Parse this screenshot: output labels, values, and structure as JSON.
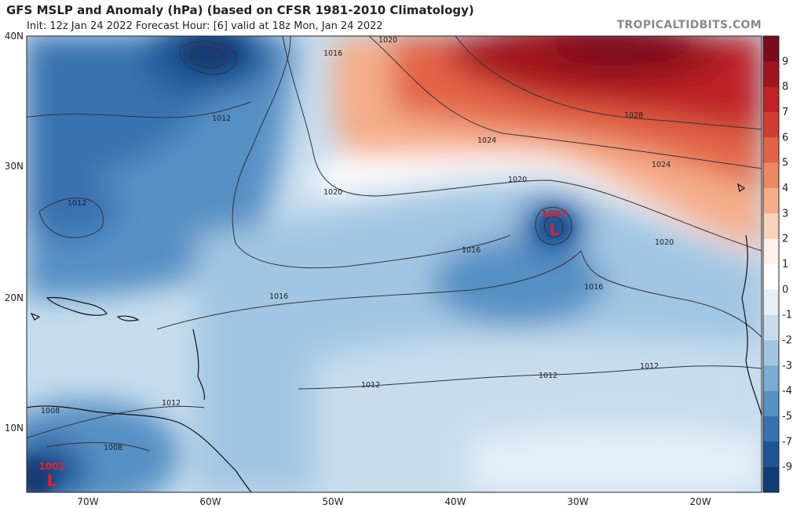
{
  "header": {
    "title": "GFS MSLP and Anomaly (hPa) (based on CFSR 1981-2010 Climatology)",
    "subtitle": "Init: 12z Jan 24 2022   Forecast Hour: [6]   valid at 18z Mon, Jan 24 2022",
    "brand": "TROPICALTIDBITS.COM"
  },
  "axes": {
    "lat_labels": [
      "40N",
      "30N",
      "20N",
      "10N"
    ],
    "lon_labels": [
      "70W",
      "60W",
      "50W",
      "40W",
      "30W",
      "20W"
    ]
  },
  "colorbar": {
    "labels": [
      "9",
      "8",
      "7",
      "6",
      "5",
      "4",
      "3",
      "2",
      "1",
      "0",
      "-1",
      "-2",
      "-3",
      "-4",
      "-5",
      "-7",
      "-9"
    ],
    "colors": [
      "#7a0b1a",
      "#a0141e",
      "#bf2327",
      "#d23c33",
      "#e26447",
      "#ee8863",
      "#f5ad8a",
      "#fad3bd",
      "#fdf0e8",
      "#ffffff",
      "#e4eff7",
      "#c7ddee",
      "#a2c6e2",
      "#7aacd4",
      "#5690c4",
      "#3771b0",
      "#1e5496",
      "#123c75"
    ]
  },
  "isobars": [
    {
      "label": "1020"
    },
    {
      "label": "1016"
    },
    {
      "label": "1012"
    },
    {
      "label": "1028"
    },
    {
      "label": "1024"
    },
    {
      "label": "1024"
    },
    {
      "label": "1020"
    },
    {
      "label": "1020"
    },
    {
      "label": "1020"
    },
    {
      "label": "1012"
    },
    {
      "label": "1016"
    },
    {
      "label": "1016"
    },
    {
      "label": "1016"
    },
    {
      "label": "1012"
    },
    {
      "label": "1012"
    },
    {
      "label": "1012"
    },
    {
      "label": "1012"
    },
    {
      "label": "1008"
    },
    {
      "label": "1008"
    }
  ],
  "lows": [
    {
      "value": "1007",
      "symbol": "L"
    },
    {
      "value": "1002",
      "symbol": "L"
    }
  ]
}
